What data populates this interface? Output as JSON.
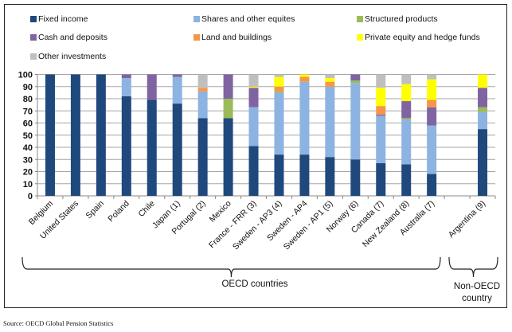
{
  "chart_data": {
    "type": "bar",
    "stacked": true,
    "title": "",
    "xlabel": "",
    "ylabel": "",
    "ylim": [
      0,
      100
    ],
    "yticks": [
      0,
      10,
      20,
      30,
      40,
      50,
      60,
      70,
      80,
      90,
      100
    ],
    "grid": true,
    "legend_position": "top",
    "categories": [
      "Belgium",
      "United States",
      "Spain",
      "Poland",
      "Chile",
      "Japan (1)",
      "Portugal (2)",
      "Mexico",
      "France - FRR (3)",
      "Sweden - AP3 (4)",
      "Sweden - AP4",
      "Sweden - AP1 (5)",
      "Norway (6)",
      "Canada (7)",
      "New Zealand (8)",
      "Australia (7)",
      "",
      "Argentina (9)"
    ],
    "series": [
      {
        "name": "Fixed income",
        "color": "#1f497d",
        "values": [
          100,
          100,
          100,
          82,
          79,
          76,
          64,
          64,
          41,
          34,
          34,
          32,
          30,
          27,
          26,
          18,
          null,
          55
        ]
      },
      {
        "name": "Shares and other equites",
        "color": "#8db3e2",
        "values": [
          0,
          0,
          0,
          15,
          0,
          22,
          22,
          0,
          32,
          51,
          60,
          58,
          63,
          39,
          37,
          40,
          null,
          14
        ]
      },
      {
        "name": "Structured products",
        "color": "#9bbb59",
        "values": [
          0,
          0,
          0,
          0,
          0,
          0,
          0,
          16,
          0,
          1,
          0,
          0,
          2,
          0,
          1,
          0,
          null,
          4
        ]
      },
      {
        "name": "Cash and deposits",
        "color": "#8064a2",
        "values": [
          0,
          0,
          0,
          3,
          21,
          2,
          0,
          20,
          16,
          0,
          0,
          0,
          5,
          1,
          14,
          15,
          null,
          16
        ]
      },
      {
        "name": "Land and buildings",
        "color": "#f79646",
        "values": [
          0,
          0,
          0,
          0,
          0,
          0,
          3,
          0,
          0,
          4,
          4,
          4,
          0,
          7,
          0,
          6,
          null,
          0
        ]
      },
      {
        "name": "Private equity and hedge funds",
        "color": "#ffff00",
        "values": [
          0,
          0,
          0,
          0,
          0,
          0,
          0,
          0,
          1,
          8,
          2,
          3,
          0,
          15,
          14,
          17,
          null,
          11
        ]
      },
      {
        "name": "Other investments",
        "color": "#bfbfbf",
        "values": [
          0,
          0,
          0,
          0,
          0,
          0,
          11,
          0,
          10,
          2,
          0,
          3,
          0,
          11,
          8,
          4,
          null,
          0
        ]
      }
    ],
    "groups": [
      {
        "label": "OECD countries",
        "from": 0,
        "to": 15
      },
      {
        "label": "Non-OECD country",
        "from": 17,
        "to": 17
      }
    ]
  },
  "groups_text": {
    "oecd": "OECD countries",
    "non_oecd_line1": "Non-OECD",
    "non_oecd_line2": "country"
  },
  "source": "Source: OECD Global Pension Statistics"
}
